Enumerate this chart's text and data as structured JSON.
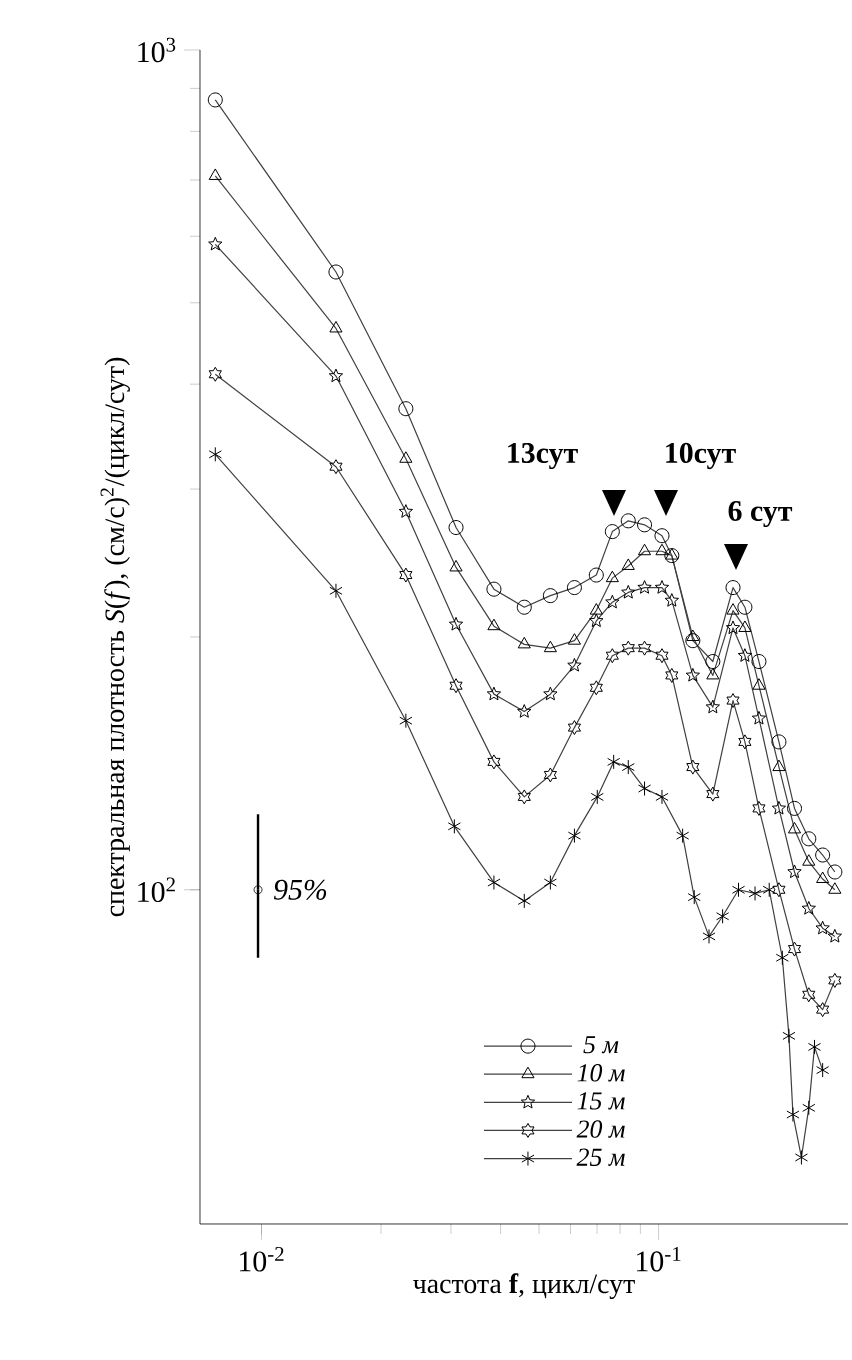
{
  "chart_data": {
    "type": "line",
    "xlabel": "частота **f**, цикл/сут",
    "ylabel": "спектральная плотность *S*(*f*), (см/с)$^{2}$/(цикл/сут)",
    "log": "xy",
    "xlim": [
      0.007,
      0.3
    ],
    "ylim": [
      40,
      1000
    ],
    "xticks": [
      {
        "value": 0.01,
        "label": "10$^{-2}$"
      },
      {
        "value": 0.1,
        "label": "10$^{-1}$"
      }
    ],
    "yticks": [
      {
        "value": 100,
        "label": "10$^{2}$"
      },
      {
        "value": 1000,
        "label": "10$^{3}$"
      }
    ],
    "grid": false,
    "legend": "bottom",
    "line_style": "solid",
    "series": [
      {
        "name": "5 м",
        "color": "#404040",
        "marker": "circle",
        "x": [
          0.00765,
          0.0154,
          0.0231,
          0.0309,
          0.0385,
          0.0459,
          0.0534,
          0.0614,
          0.0697,
          0.0765,
          0.0839,
          0.0922,
          0.102,
          0.108,
          0.122,
          0.137,
          0.154,
          0.165,
          0.179,
          0.201,
          0.22,
          0.239,
          0.259,
          0.278
        ],
        "values": [
          872,
          544,
          374,
          270,
          228,
          217,
          224,
          229,
          237,
          267,
          275,
          272,
          264,
          250,
          198,
          187,
          229,
          217,
          187,
          150,
          125,
          115,
          110,
          105
        ]
      },
      {
        "name": "10 м",
        "color": "#404040",
        "marker": "triangle",
        "x": [
          0.00765,
          0.0154,
          0.0231,
          0.0309,
          0.0385,
          0.0459,
          0.0534,
          0.0614,
          0.0697,
          0.0765,
          0.0839,
          0.0922,
          0.102,
          0.108,
          0.122,
          0.137,
          0.154,
          0.165,
          0.179,
          0.201,
          0.22,
          0.239,
          0.259,
          0.278
        ],
        "values": [
          708,
          466,
          326,
          242,
          206,
          196,
          194,
          198,
          215,
          235,
          243,
          253,
          253,
          250,
          200,
          180,
          215,
          205,
          175,
          140,
          118,
          108,
          103,
          100
        ]
      },
      {
        "name": "15 м",
        "color": "#404040",
        "marker": "star",
        "x": [
          0.00765,
          0.0154,
          0.0231,
          0.0309,
          0.0385,
          0.0459,
          0.0534,
          0.0614,
          0.0697,
          0.0765,
          0.0839,
          0.0922,
          0.102,
          0.108,
          0.122,
          0.137,
          0.154,
          0.165,
          0.179,
          0.201,
          0.22,
          0.239,
          0.259,
          0.278
        ],
        "values": [
          587,
          409,
          282,
          207,
          171,
          163,
          171,
          185,
          209,
          220,
          226,
          229,
          229,
          221,
          180,
          165,
          205,
          190,
          160,
          125,
          105,
          95,
          90,
          88
        ]
      },
      {
        "name": "20 м",
        "color": "#404040",
        "marker": "cross",
        "x": [
          0.00765,
          0.0154,
          0.0231,
          0.0309,
          0.0385,
          0.0459,
          0.0534,
          0.0614,
          0.0697,
          0.0765,
          0.0839,
          0.0922,
          0.102,
          0.108,
          0.122,
          0.137,
          0.154,
          0.165,
          0.179,
          0.201,
          0.22,
          0.239,
          0.259,
          0.278
        ],
        "values": [
          411,
          319,
          237,
          175,
          142,
          129,
          137,
          156,
          174,
          190,
          194,
          194,
          190,
          180,
          140,
          130,
          168,
          150,
          125,
          100,
          85,
          75,
          72,
          78
        ]
      },
      {
        "name": "25 м",
        "color": "#404040",
        "marker": "cross",
        "x": [
          0.00765,
          0.0154,
          0.0231,
          0.0306,
          0.0385,
          0.0459,
          0.0534,
          0.0614,
          0.0701,
          0.0771,
          0.0839,
          0.0922,
          0.102,
          0.115,
          0.123,
          0.134,
          0.145,
          0.159,
          0.175,
          0.19,
          0.205,
          0.213,
          0.218,
          0.229,
          0.239,
          0.247,
          0.259
        ],
        "values": [
          330,
          227,
          159,
          119,
          102,
          97,
          102,
          116,
          129,
          142,
          140,
          132,
          129,
          116,
          98,
          88,
          93,
          100,
          99,
          100,
          83,
          67,
          54,
          48,
          55,
          65,
          61
        ]
      },
      {
        "type": "scatter",
        "color": "#000000",
        "marker": "circle",
        "x": [
          0.0098
        ],
        "values": [
          100
        ],
        "errors": [
          [
            83,
            123
          ]
        ]
      }
    ],
    "annotations": [
      "13сут",
      "10сут",
      "6 сут",
      {
        "text": "95%",
        "x": 0.0098,
        "y": 100
      }
    ]
  }
}
